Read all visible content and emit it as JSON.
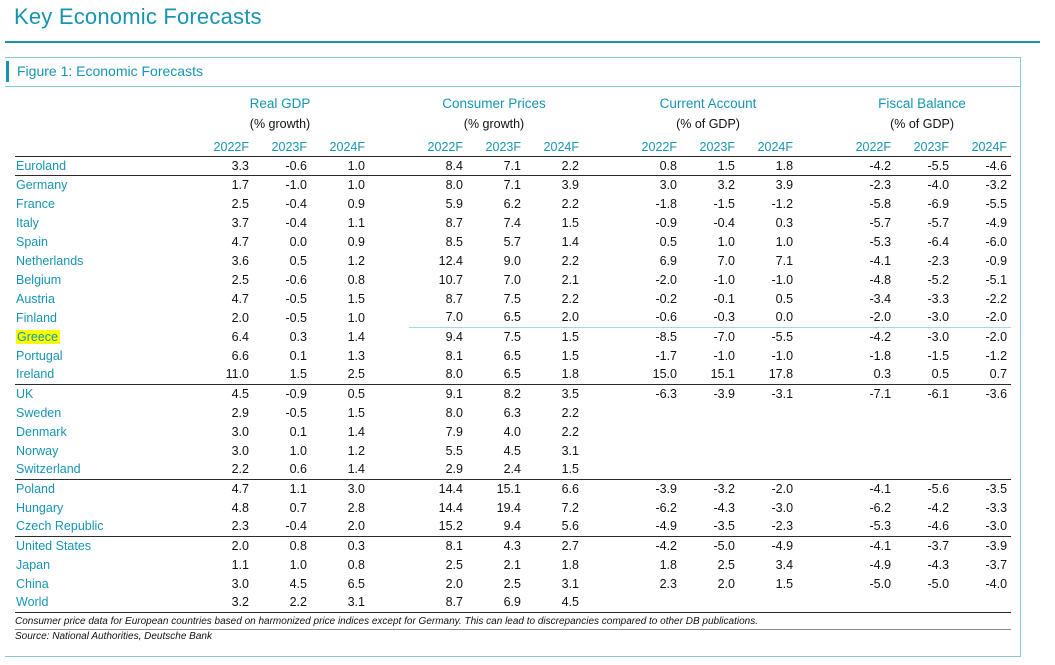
{
  "page_title": "Key Economic Forecasts",
  "figure_title": "Figure 1: Economic Forecasts",
  "colors": {
    "accent": "#1694b2",
    "frame": "#8cc6d4",
    "rule": "#2b2b2b",
    "thinline": "#a6d6e0",
    "highlight": "#fbff00"
  },
  "table": {
    "groups": [
      {
        "label": "Real GDP",
        "sub": "(% growth)"
      },
      {
        "label": "Consumer Prices",
        "sub": "(% growth)"
      },
      {
        "label": "Current Account",
        "sub": "(% of GDP)"
      },
      {
        "label": "Fiscal Balance",
        "sub": "(% of GDP)"
      }
    ],
    "year_headers": [
      "2022F",
      "2023F",
      "2024F"
    ],
    "rows": [
      {
        "country": "Euroland",
        "highlight": false,
        "sep_after": true,
        "thin_line_after": false,
        "values": [
          "3.3",
          "-0.6",
          "1.0",
          "8.4",
          "7.1",
          "2.2",
          "0.8",
          "1.5",
          "1.8",
          "-4.2",
          "-5.5",
          "-4.6"
        ]
      },
      {
        "country": "Germany",
        "highlight": false,
        "sep_after": false,
        "thin_line_after": false,
        "values": [
          "1.7",
          "-1.0",
          "1.0",
          "8.0",
          "7.1",
          "3.9",
          "3.0",
          "3.2",
          "3.9",
          "-2.3",
          "-4.0",
          "-3.2"
        ]
      },
      {
        "country": "France",
        "highlight": false,
        "sep_after": false,
        "thin_line_after": false,
        "values": [
          "2.5",
          "-0.4",
          "0.9",
          "5.9",
          "6.2",
          "2.2",
          "-1.8",
          "-1.5",
          "-1.2",
          "-5.8",
          "-6.9",
          "-5.5"
        ]
      },
      {
        "country": "Italy",
        "highlight": false,
        "sep_after": false,
        "thin_line_after": false,
        "values": [
          "3.7",
          "-0.4",
          "1.1",
          "8.7",
          "7.4",
          "1.5",
          "-0.9",
          "-0.4",
          "0.3",
          "-5.7",
          "-5.7",
          "-4.9"
        ]
      },
      {
        "country": "Spain",
        "highlight": false,
        "sep_after": false,
        "thin_line_after": false,
        "values": [
          "4.7",
          "0.0",
          "0.9",
          "8.5",
          "5.7",
          "1.4",
          "0.5",
          "1.0",
          "1.0",
          "-5.3",
          "-6.4",
          "-6.0"
        ]
      },
      {
        "country": "Netherlands",
        "highlight": false,
        "sep_after": false,
        "thin_line_after": false,
        "values": [
          "3.6",
          "0.5",
          "1.2",
          "12.4",
          "9.0",
          "2.2",
          "6.9",
          "7.0",
          "7.1",
          "-4.1",
          "-2.3",
          "-0.9"
        ]
      },
      {
        "country": "Belgium",
        "highlight": false,
        "sep_after": false,
        "thin_line_after": false,
        "values": [
          "2.5",
          "-0.6",
          "0.8",
          "10.7",
          "7.0",
          "2.1",
          "-2.0",
          "-1.0",
          "-1.0",
          "-4.8",
          "-5.2",
          "-5.1"
        ]
      },
      {
        "country": "Austria",
        "highlight": false,
        "sep_after": false,
        "thin_line_after": false,
        "values": [
          "4.7",
          "-0.5",
          "1.5",
          "8.7",
          "7.5",
          "2.2",
          "-0.2",
          "-0.1",
          "0.5",
          "-3.4",
          "-3.3",
          "-2.2"
        ]
      },
      {
        "country": "Finland",
        "highlight": false,
        "sep_after": false,
        "thin_line_after": true,
        "values": [
          "2.0",
          "-0.5",
          "1.0",
          "7.0",
          "6.5",
          "2.0",
          "-0.6",
          "-0.3",
          "0.0",
          "-2.0",
          "-3.0",
          "-2.0"
        ]
      },
      {
        "country": "Greece",
        "highlight": true,
        "sep_after": false,
        "thin_line_after": false,
        "values": [
          "6.4",
          "0.3",
          "1.4",
          "9.4",
          "7.5",
          "1.5",
          "-8.5",
          "-7.0",
          "-5.5",
          "-4.2",
          "-3.0",
          "-2.0"
        ]
      },
      {
        "country": "Portugal",
        "highlight": false,
        "sep_after": false,
        "thin_line_after": false,
        "values": [
          "6.6",
          "0.1",
          "1.3",
          "8.1",
          "6.5",
          "1.5",
          "-1.7",
          "-1.0",
          "-1.0",
          "-1.8",
          "-1.5",
          "-1.2"
        ]
      },
      {
        "country": "Ireland",
        "highlight": false,
        "sep_after": true,
        "thin_line_after": false,
        "values": [
          "11.0",
          "1.5",
          "2.5",
          "8.0",
          "6.5",
          "1.8",
          "15.0",
          "15.1",
          "17.8",
          "0.3",
          "0.5",
          "0.7"
        ]
      },
      {
        "country": "UK",
        "highlight": false,
        "sep_after": false,
        "thin_line_after": false,
        "values": [
          "4.5",
          "-0.9",
          "0.5",
          "9.1",
          "8.2",
          "3.5",
          "-6.3",
          "-3.9",
          "-3.1",
          "-7.1",
          "-6.1",
          "-3.6"
        ]
      },
      {
        "country": "Sweden",
        "highlight": false,
        "sep_after": false,
        "thin_line_after": false,
        "values": [
          "2.9",
          "-0.5",
          "1.5",
          "8.0",
          "6.3",
          "2.2",
          "",
          "",
          "",
          "",
          "",
          ""
        ]
      },
      {
        "country": "Denmark",
        "highlight": false,
        "sep_after": false,
        "thin_line_after": false,
        "values": [
          "3.0",
          "0.1",
          "1.4",
          "7.9",
          "4.0",
          "2.2",
          "",
          "",
          "",
          "",
          "",
          ""
        ]
      },
      {
        "country": "Norway",
        "highlight": false,
        "sep_after": false,
        "thin_line_after": false,
        "values": [
          "3.0",
          "1.0",
          "1.2",
          "5.5",
          "4.5",
          "3.1",
          "",
          "",
          "",
          "",
          "",
          ""
        ]
      },
      {
        "country": "Switzerland",
        "highlight": false,
        "sep_after": true,
        "thin_line_after": false,
        "values": [
          "2.2",
          "0.6",
          "1.4",
          "2.9",
          "2.4",
          "1.5",
          "",
          "",
          "",
          "",
          "",
          ""
        ]
      },
      {
        "country": "Poland",
        "highlight": false,
        "sep_after": false,
        "thin_line_after": false,
        "values": [
          "4.7",
          "1.1",
          "3.0",
          "14.4",
          "15.1",
          "6.6",
          "-3.9",
          "-3.2",
          "-2.0",
          "-4.1",
          "-5.6",
          "-3.5"
        ]
      },
      {
        "country": "Hungary",
        "highlight": false,
        "sep_after": false,
        "thin_line_after": false,
        "values": [
          "4.8",
          "0.7",
          "2.8",
          "14.4",
          "19.4",
          "7.2",
          "-6.2",
          "-4.3",
          "-3.0",
          "-6.2",
          "-4.2",
          "-3.3"
        ]
      },
      {
        "country": "Czech Republic",
        "highlight": false,
        "sep_after": true,
        "thin_line_after": false,
        "values": [
          "2.3",
          "-0.4",
          "2.0",
          "15.2",
          "9.4",
          "5.6",
          "-4.9",
          "-3.5",
          "-2.3",
          "-5.3",
          "-4.6",
          "-3.0"
        ]
      },
      {
        "country": "United States",
        "highlight": false,
        "sep_after": false,
        "thin_line_after": false,
        "values": [
          "2.0",
          "0.8",
          "0.3",
          "8.1",
          "4.3",
          "2.7",
          "-4.2",
          "-5.0",
          "-4.9",
          "-4.1",
          "-3.7",
          "-3.9"
        ]
      },
      {
        "country": "Japan",
        "highlight": false,
        "sep_after": false,
        "thin_line_after": false,
        "values": [
          "1.1",
          "1.0",
          "0.8",
          "2.5",
          "2.1",
          "1.8",
          "1.8",
          "2.5",
          "3.4",
          "-4.9",
          "-4.3",
          "-3.7"
        ]
      },
      {
        "country": "China",
        "highlight": false,
        "sep_after": false,
        "thin_line_after": false,
        "values": [
          "3.0",
          "4.5",
          "6.5",
          "2.0",
          "2.5",
          "3.1",
          "2.3",
          "2.0",
          "1.5",
          "-5.0",
          "-5.0",
          "-4.0"
        ]
      },
      {
        "country": "World",
        "highlight": false,
        "sep_after": true,
        "thin_line_after": false,
        "values": [
          "3.2",
          "2.2",
          "3.1",
          "8.7",
          "6.9",
          "4.5",
          "",
          "",
          "",
          "",
          "",
          ""
        ]
      }
    ]
  },
  "footnote": "Consumer price data for European countries based on harmonized price indices except for Germany. This can lead to discrepancies compared to other DB publications.",
  "source": "Source: National Authorities, Deutsche Bank"
}
